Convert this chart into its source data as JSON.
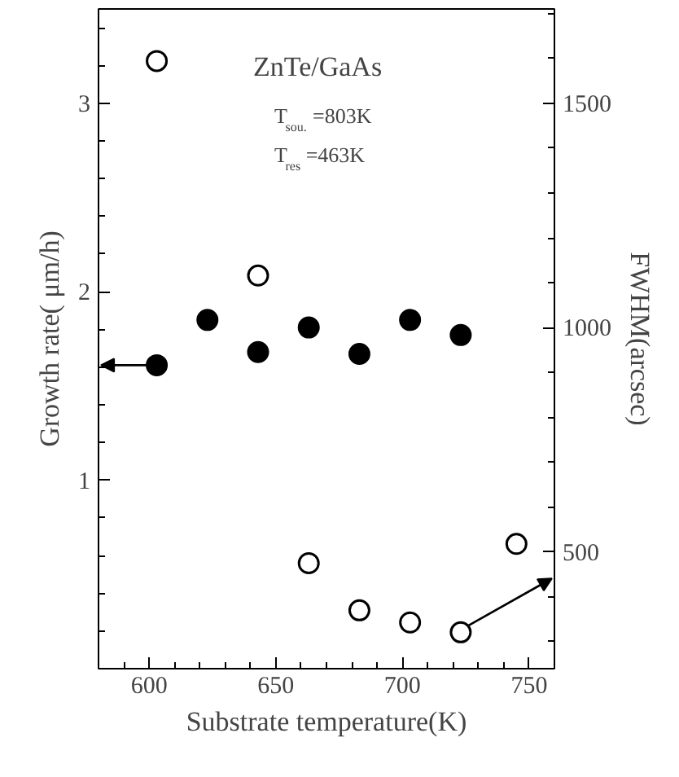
{
  "chart_data": {
    "type": "scatter",
    "xlabel": "Substrate temperature(K)",
    "ylabel": "Growth rate( μm/h)",
    "y2label": "FWHM(arcsec)",
    "annotations": [
      "ZnTe/GaAs",
      "T$_{sou.}$=803K",
      "T$_{res}$=463K"
    ],
    "marker": "circle",
    "grid": false,
    "xlim": [
      580,
      760
    ],
    "xticks": [
      600,
      650,
      700,
      750
    ],
    "ylim": [
      0,
      3.5
    ],
    "yticks": [
      1,
      2,
      3
    ],
    "y2lim": [
      240,
      1710
    ],
    "y2ticks": [
      500,
      1000,
      1500
    ],
    "series": [
      {
        "color": "#000000",
        "x": [
          603,
          623,
          643,
          663,
          683,
          703,
          723
        ],
        "values": [
          1.61,
          1.85,
          1.68,
          1.81,
          1.67,
          1.85,
          1.77
        ]
      },
      {
        "color": "#000000",
        "axis": "y2",
        "x": [
          603,
          643,
          663,
          683,
          703,
          723,
          745
        ],
        "values": [
          1594,
          1116,
          475,
          370,
          343,
          321,
          518
        ]
      }
    ]
  }
}
